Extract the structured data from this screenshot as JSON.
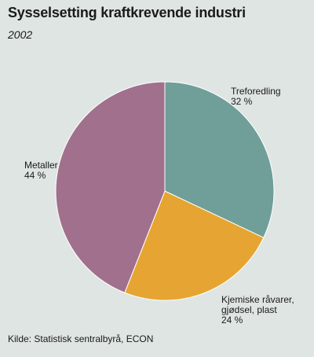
{
  "chart_data": {
    "type": "pie",
    "title": "Sysselsetting kraftkrevende industri",
    "subtitle": "2002",
    "source": "Kilde: Statistisk sentralbyrå, ECON",
    "slices": [
      {
        "label_lines": [
          "Treforedling"
        ],
        "value": 32,
        "value_label": "32 %",
        "color": "#6f9f98"
      },
      {
        "label_lines": [
          "Kjemiske råvarer,",
          "gjødsel, plast"
        ],
        "value": 24,
        "value_label": "24 %",
        "color": "#e6a532"
      },
      {
        "label_lines": [
          "Metaller"
        ],
        "value": 44,
        "value_label": "44 %",
        "color": "#a0708d"
      }
    ]
  }
}
